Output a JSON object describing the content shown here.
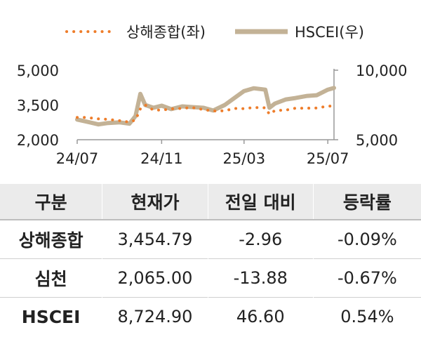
{
  "chart_data": {
    "type": "line",
    "x_ticks": [
      "24/07",
      "24/11",
      "25/03",
      "25/07"
    ],
    "y_left_ticks": [
      "5,000",
      "3,500",
      "2,000"
    ],
    "y_right_ticks": [
      "10,000",
      "5,000"
    ],
    "y_left_range": [
      2000,
      5000
    ],
    "y_right_range": [
      5000,
      10000
    ],
    "legend_position": "top",
    "series": [
      {
        "name": "상해종합(좌)",
        "axis": "left",
        "style": "dotted",
        "color": "#ee7d2b",
        "x": [
          "2024-07-01",
          "2024-07-15",
          "2024-08-01",
          "2024-08-15",
          "2024-09-01",
          "2024-09-15",
          "2024-09-24",
          "2024-10-01",
          "2024-10-08",
          "2024-10-20",
          "2024-11-01",
          "2024-11-15",
          "2024-12-01",
          "2024-12-15",
          "2025-01-01",
          "2025-01-15",
          "2025-02-01",
          "2025-02-15",
          "2025-03-01",
          "2025-03-15",
          "2025-04-01",
          "2025-04-07",
          "2025-04-15",
          "2025-05-01",
          "2025-05-15",
          "2025-06-01",
          "2025-06-15",
          "2025-07-01",
          "2025-07-10"
        ],
        "y": [
          2960,
          2960,
          2900,
          2880,
          2820,
          2760,
          2850,
          3330,
          3500,
          3280,
          3280,
          3330,
          3350,
          3390,
          3300,
          3240,
          3250,
          3350,
          3340,
          3390,
          3380,
          3100,
          3260,
          3280,
          3360,
          3360,
          3370,
          3450,
          3455
        ]
      },
      {
        "name": "HSCEI(우)",
        "axis": "right",
        "style": "solid",
        "color": "#c3b296",
        "x": [
          "2024-07-01",
          "2024-07-15",
          "2024-08-01",
          "2024-08-15",
          "2024-09-01",
          "2024-09-15",
          "2024-09-24",
          "2024-10-01",
          "2024-10-08",
          "2024-10-20",
          "2024-11-01",
          "2024-11-15",
          "2024-12-01",
          "2024-12-15",
          "2025-01-01",
          "2025-01-15",
          "2025-02-01",
          "2025-02-15",
          "2025-03-01",
          "2025-03-15",
          "2025-04-01",
          "2025-04-07",
          "2025-04-15",
          "2025-05-01",
          "2025-05-15",
          "2025-06-01",
          "2025-06-15",
          "2025-07-01",
          "2025-07-10"
        ],
        "y": [
          6450,
          6300,
          6100,
          6200,
          6250,
          6150,
          6700,
          8300,
          7500,
          7300,
          7450,
          7200,
          7400,
          7350,
          7300,
          7100,
          7500,
          8000,
          8500,
          8700,
          8600,
          7300,
          7600,
          7900,
          8000,
          8150,
          8200,
          8600,
          8725
        ]
      }
    ]
  },
  "table": {
    "headers": [
      "구분",
      "현재가",
      "전일 대비",
      "등락률"
    ],
    "rows": [
      [
        "상해종합",
        "3,454.79",
        "-2.96",
        "-0.09%"
      ],
      [
        "심천",
        "2,065.00",
        "-13.88",
        "-0.67%"
      ],
      [
        "HSCEI",
        "8,724.90",
        "46.60",
        "0.54%"
      ]
    ]
  }
}
